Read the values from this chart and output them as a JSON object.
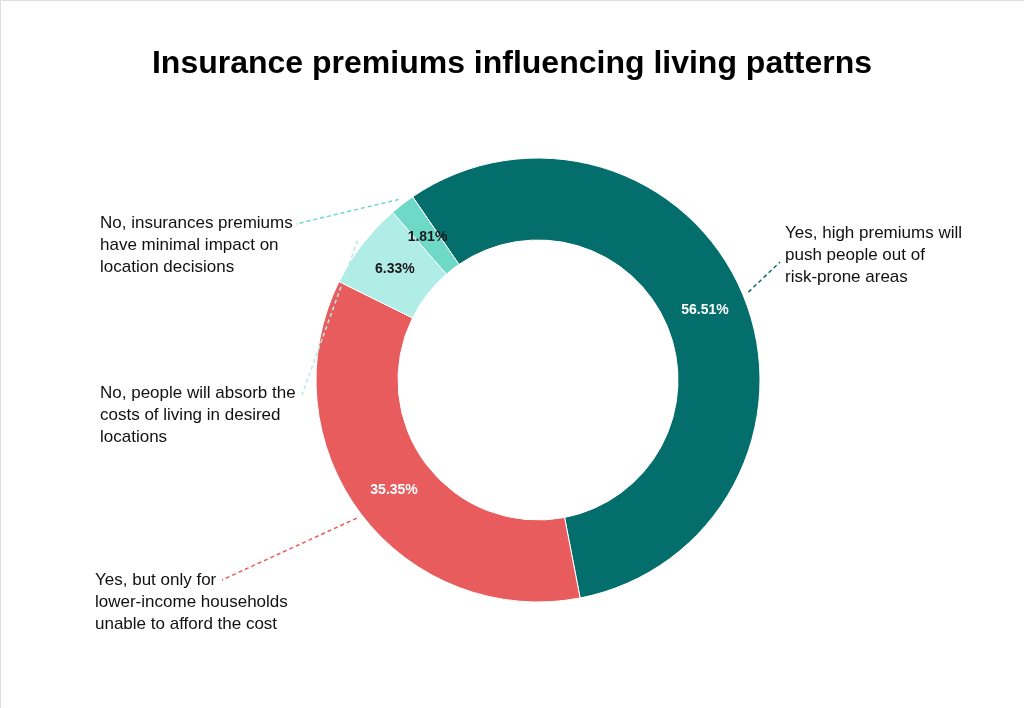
{
  "chart_data": {
    "type": "donut",
    "title": "Insurance premiums influencing living patterns",
    "categories": [
      "Yes, high premiums will push people out of risk-prone areas",
      "Yes, but only for lower-income households unable to afford the cost",
      "No, people will absorb the costs of living in desired locations",
      "No, insurances premiums have minimal impact on location decisions"
    ],
    "values": [
      56.51,
      35.35,
      6.33,
      1.81
    ],
    "value_labels": [
      "56.51%",
      "35.35%",
      "6.33%",
      "1.81%"
    ],
    "colors": [
      "#036e6b",
      "#e85c5e",
      "#b0ede6",
      "#6dd9c6"
    ],
    "legend": false
  }
}
